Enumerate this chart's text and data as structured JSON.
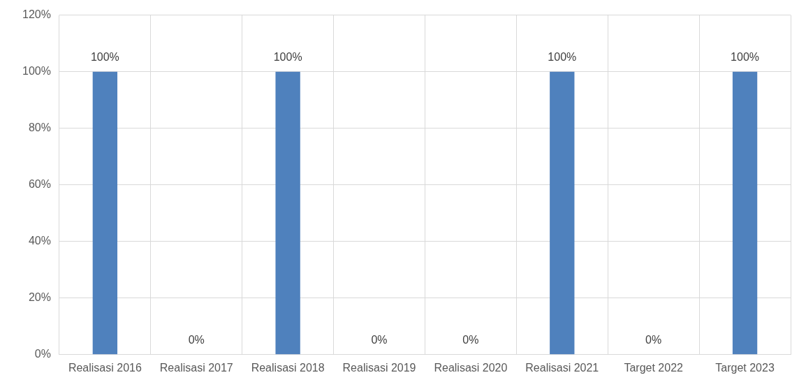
{
  "chart_data": {
    "type": "bar",
    "categories": [
      "Realisasi 2016",
      "Realisasi 2017",
      "Realisasi 2018",
      "Realisasi 2019",
      "Realisasi 2020",
      "Realisasi 2021",
      "Target 2022",
      "Target 2023"
    ],
    "values": [
      100,
      0,
      100,
      0,
      0,
      100,
      0,
      100
    ],
    "color": "#4f81bd",
    "value_labels": [
      "100%",
      "0%",
      "100%",
      "0%",
      "0%",
      "100%",
      "0%",
      "100%"
    ],
    "ylim": [
      0,
      120
    ],
    "yticks": [
      {
        "value": 0,
        "label": "0%"
      },
      {
        "value": 20,
        "label": "20%"
      },
      {
        "value": 40,
        "label": "40%"
      },
      {
        "value": 60,
        "label": "60%"
      },
      {
        "value": 80,
        "label": "80%"
      },
      {
        "value": 100,
        "label": "100%"
      },
      {
        "value": 120,
        "label": "120%"
      }
    ],
    "grid": true,
    "legend": false
  }
}
